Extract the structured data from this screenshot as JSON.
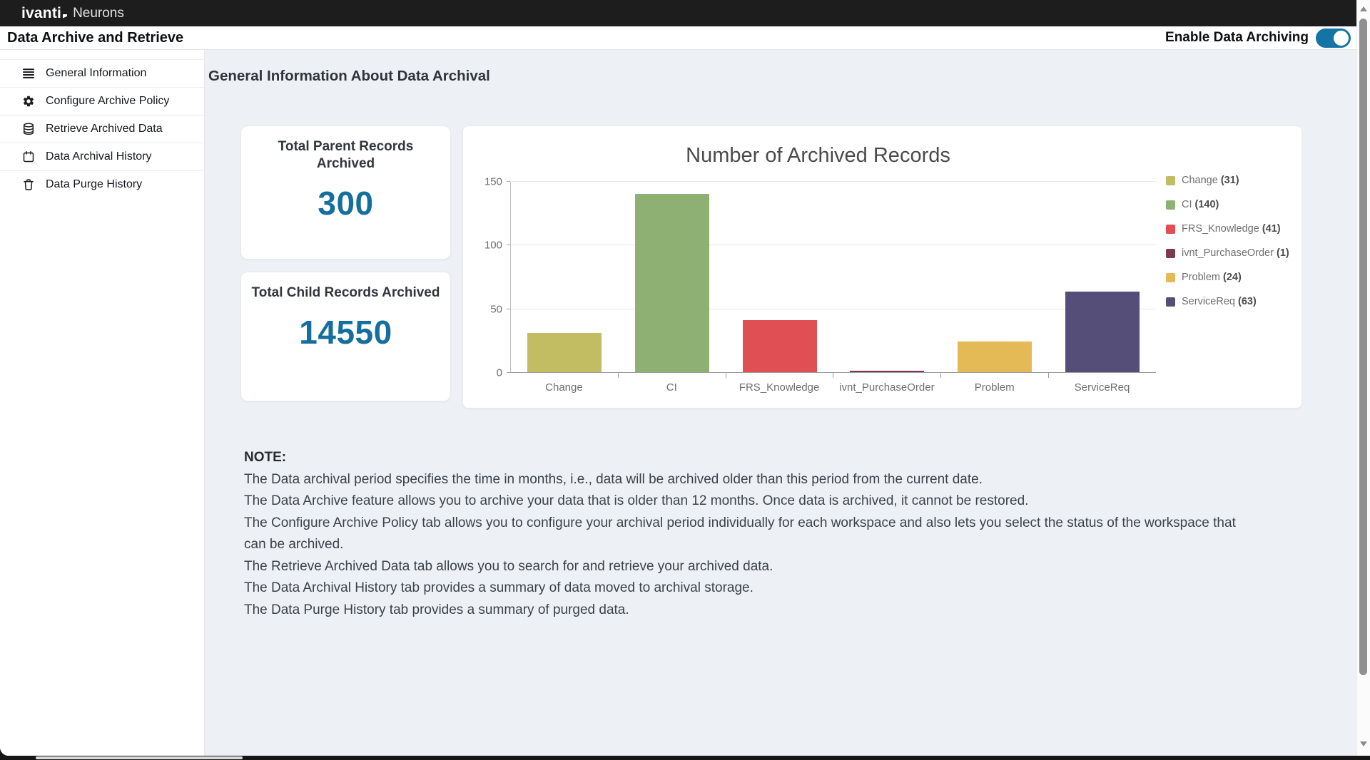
{
  "topbar": {
    "brand": "ivanti",
    "product": "Neurons"
  },
  "header": {
    "title": "Data Archive and Retrieve",
    "toggle_label": "Enable Data Archiving",
    "toggle_state": "on"
  },
  "sidebar": {
    "items": [
      {
        "label": "General Information",
        "icon": "menu-icon"
      },
      {
        "label": "Configure Archive Policy",
        "icon": "gear-icon"
      },
      {
        "label": "Retrieve Archived Data",
        "icon": "database-icon"
      },
      {
        "label": "Data Archival History",
        "icon": "calendar-icon"
      },
      {
        "label": "Data Purge History",
        "icon": "trash-icon"
      }
    ]
  },
  "main": {
    "heading": "General Information About Data Archival",
    "cards": [
      {
        "title": "Total Parent Records Archived",
        "value": "300"
      },
      {
        "title": "Total Child Records Archived",
        "value": "14550"
      }
    ],
    "note": {
      "heading": "NOTE:",
      "lines": [
        "The Data archival period specifies the time in months, i.e., data will be archived older than this period from the current date.",
        "The Data Archive feature allows you to archive your data that is older than 12 months. Once data is archived, it cannot be restored.",
        "The Configure Archive Policy tab allows you to configure your archival period individually for each workspace and also lets you select the status of the workspace that can be archived.",
        "The Retrieve Archived Data tab allows you to search for and retrieve your archived data.",
        "The Data Archival History tab provides a summary of data moved to archival storage.",
        "The Data Purge History tab provides a summary of purged data."
      ]
    }
  },
  "chart_data": {
    "type": "bar",
    "title": "Number of Archived Records",
    "categories": [
      "Change",
      "CI",
      "FRS_Knowledge",
      "ivnt_PurchaseOrder",
      "Problem",
      "ServiceReq"
    ],
    "values": [
      31,
      140,
      41,
      1,
      24,
      63
    ],
    "bar_colors": [
      "#c2bd62",
      "#8eb173",
      "#e04f54",
      "#7b3b4c",
      "#e4ba57",
      "#554e78"
    ],
    "legend": [
      {
        "label": "Change",
        "count": 31
      },
      {
        "label": "CI",
        "count": 140
      },
      {
        "label": "FRS_Knowledge",
        "count": 41
      },
      {
        "label": "ivnt_PurchaseOrder",
        "count": 1
      },
      {
        "label": "Problem",
        "count": 24
      },
      {
        "label": "ServiceReq",
        "count": 63
      }
    ],
    "xlabel": "",
    "ylabel": "",
    "ylim": [
      0,
      150
    ],
    "yticks": [
      0,
      50,
      100,
      150
    ],
    "grid": true,
    "legend_position": "right"
  },
  "colors": {
    "accent_teal": "#1474a3",
    "value_text": "#146f9e",
    "topbar_bg": "#1d1d1d",
    "content_bg": "#edf1f5"
  }
}
